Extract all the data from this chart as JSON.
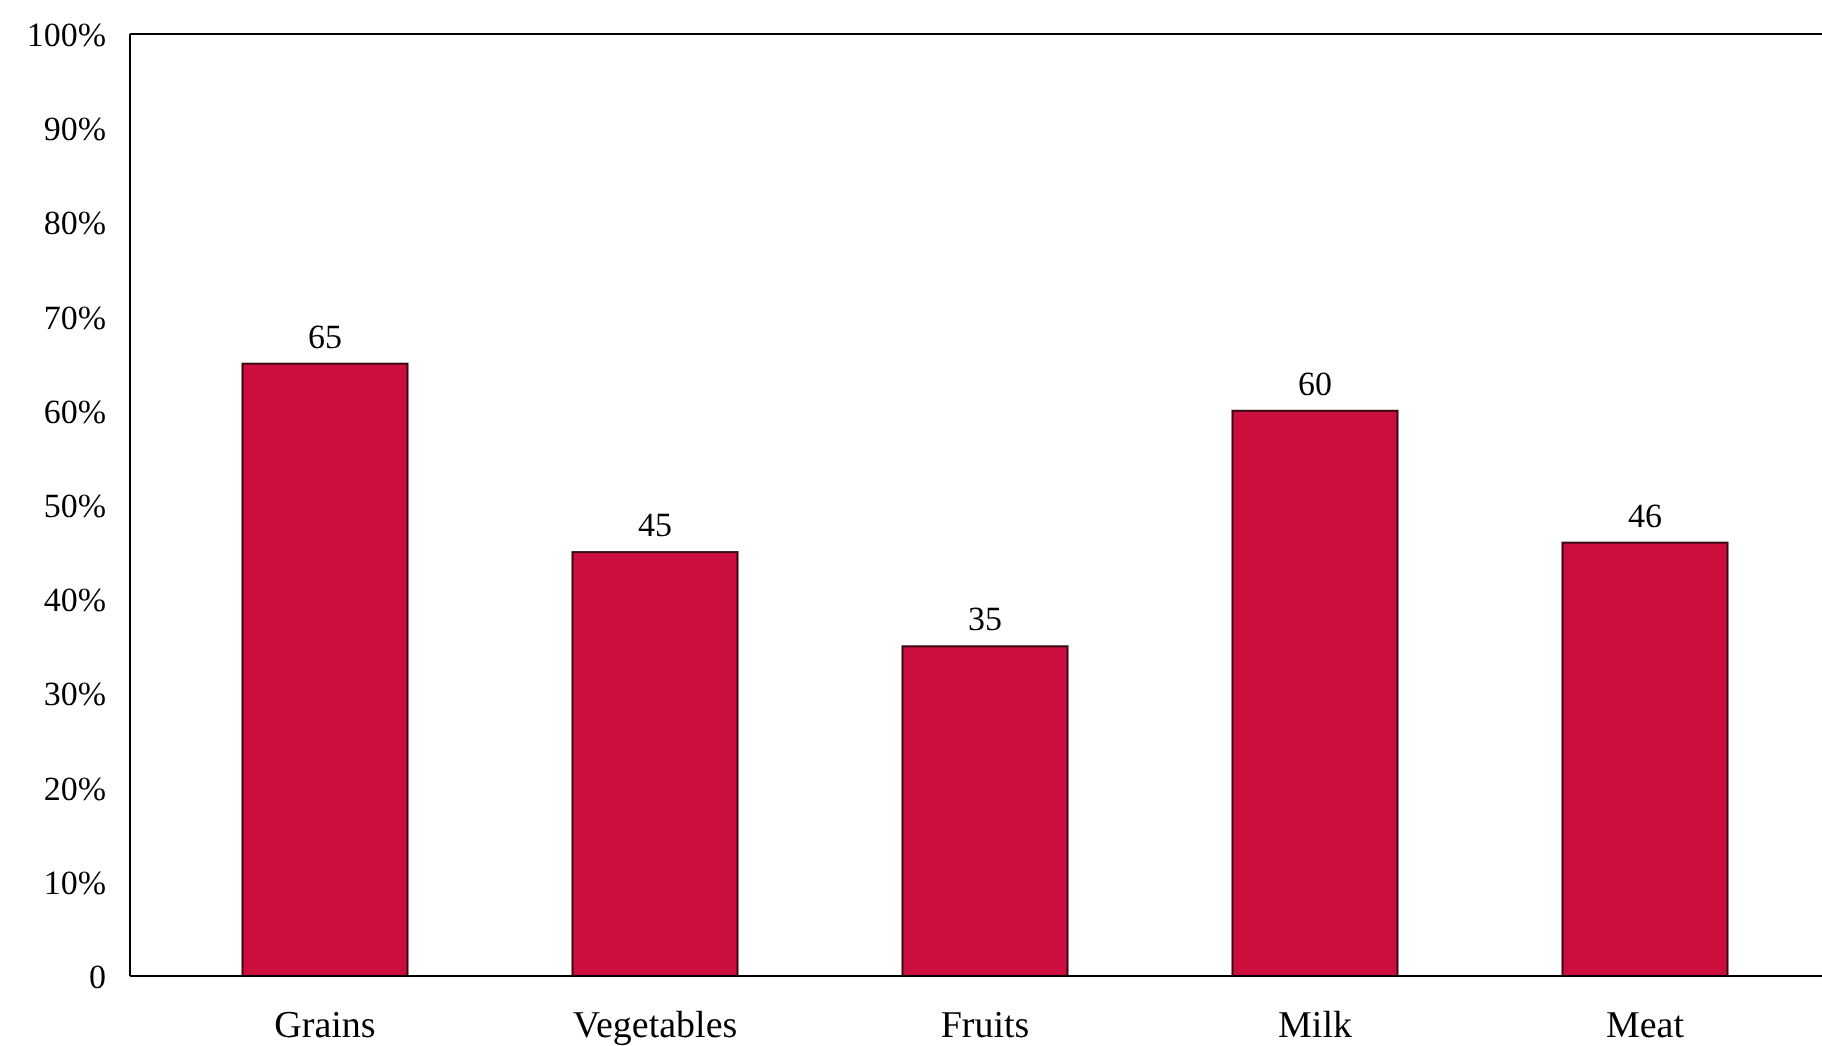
{
  "chart_data": {
    "type": "bar",
    "categories": [
      "Grains",
      "Vegetables",
      "Fruits",
      "Milk",
      "Meat"
    ],
    "values": [
      65,
      45,
      35,
      60,
      46
    ],
    "color": "#cc0e3e",
    "ylim": [
      0,
      100
    ],
    "yticks": [
      0,
      {
        "value": 10,
        "label": "10%"
      },
      {
        "value": 20,
        "label": "20%"
      },
      {
        "value": 30,
        "label": "30%"
      },
      {
        "value": 40,
        "label": "40%"
      },
      {
        "value": 50,
        "label": "50%"
      },
      {
        "value": 60,
        "label": "60%"
      },
      {
        "value": 70,
        "label": "70%"
      },
      {
        "value": 80,
        "label": "80%"
      },
      {
        "value": 90,
        "label": "90%"
      },
      {
        "value": 100,
        "label": "100%"
      }
    ],
    "data_labels": true,
    "grid": false
  }
}
